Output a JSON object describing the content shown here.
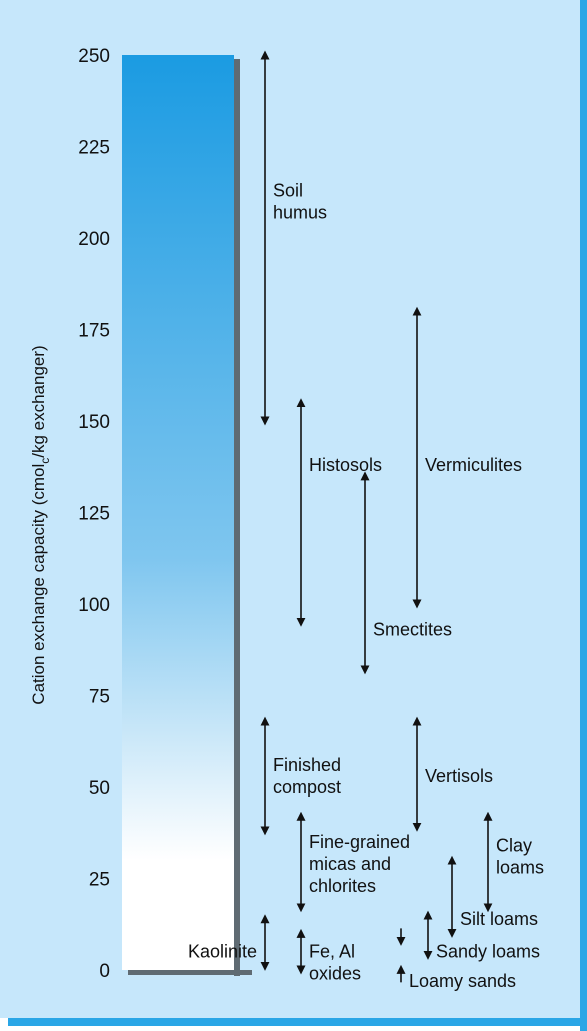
{
  "chart_data": {
    "type": "range",
    "ylabel": "Cation exchange capacity (cmolc/kg exchanger)",
    "ylabel_main": "Cation exchange capacity (cmol",
    "ylabel_sub": "c",
    "ylabel_tail": "/kg exchanger)",
    "ylim": [
      0,
      250
    ],
    "yticks": [
      "0",
      "25",
      "50",
      "75",
      "100",
      "125",
      "150",
      "175",
      "200",
      "225",
      "250"
    ],
    "bar": {
      "from": 0,
      "to": 250,
      "gradient": "blue at top to white at bottom"
    },
    "ranges": [
      {
        "label_lines": [
          "Soil",
          "humus"
        ],
        "min": 150,
        "max": 250,
        "col": "c1",
        "label_at": 210
      },
      {
        "label_lines": [
          "Histosols"
        ],
        "min": 95,
        "max": 155,
        "col": "c2",
        "label_at": 138
      },
      {
        "label_lines": [
          "Smectites"
        ],
        "min": 82,
        "max": 135,
        "col": "c3",
        "label_at": 93
      },
      {
        "label_lines": [
          "Vermiculites"
        ],
        "min": 100,
        "max": 180,
        "col": "c4",
        "label_at": 138
      },
      {
        "label_lines": [
          "Finished",
          "compost"
        ],
        "min": 38,
        "max": 68,
        "col": "c1",
        "label_at": 53
      },
      {
        "label_lines": [
          "Vertisols"
        ],
        "min": 39,
        "max": 68,
        "col": "c4",
        "label_at": 53
      },
      {
        "label_lines": [
          "Fine-grained",
          "micas and",
          "chlorites"
        ],
        "min": 17,
        "max": 42,
        "col": "c2",
        "label_at": 29
      },
      {
        "label_lines": [
          "Clay",
          "loams"
        ],
        "min": 17,
        "max": 42,
        "col": "c6",
        "label_at": 31
      },
      {
        "label_lines": [
          "Silt loams"
        ],
        "min": 10,
        "max": 30,
        "col": "c5",
        "label_at": 14
      },
      {
        "label_lines": [
          "Sandy loams"
        ],
        "min": 4,
        "max": 15,
        "col": "c5b",
        "label_at": 5
      },
      {
        "label_lines": [
          "Kaolinite"
        ],
        "min": 1,
        "max": 14,
        "col": "c1",
        "label_at": 5,
        "label_side": "left"
      },
      {
        "label_lines": [
          "Fe, Al",
          "oxides"
        ],
        "min": 0,
        "max": 10,
        "col": "c2",
        "label_at": 2
      },
      {
        "label_lines": [
          "Loamy sands"
        ],
        "min": 1,
        "max": 7,
        "col": "c3b",
        "label_at": -3
      }
    ],
    "grid": false,
    "legend": "none"
  },
  "colors": {
    "panel_background": "#c6e7fb",
    "panel_border": "#2aa6e6",
    "bar_top": "#1b9be2",
    "bar_bottom": "#ffffff",
    "bar_shadow": "#5f6b73",
    "text": "#111111"
  }
}
